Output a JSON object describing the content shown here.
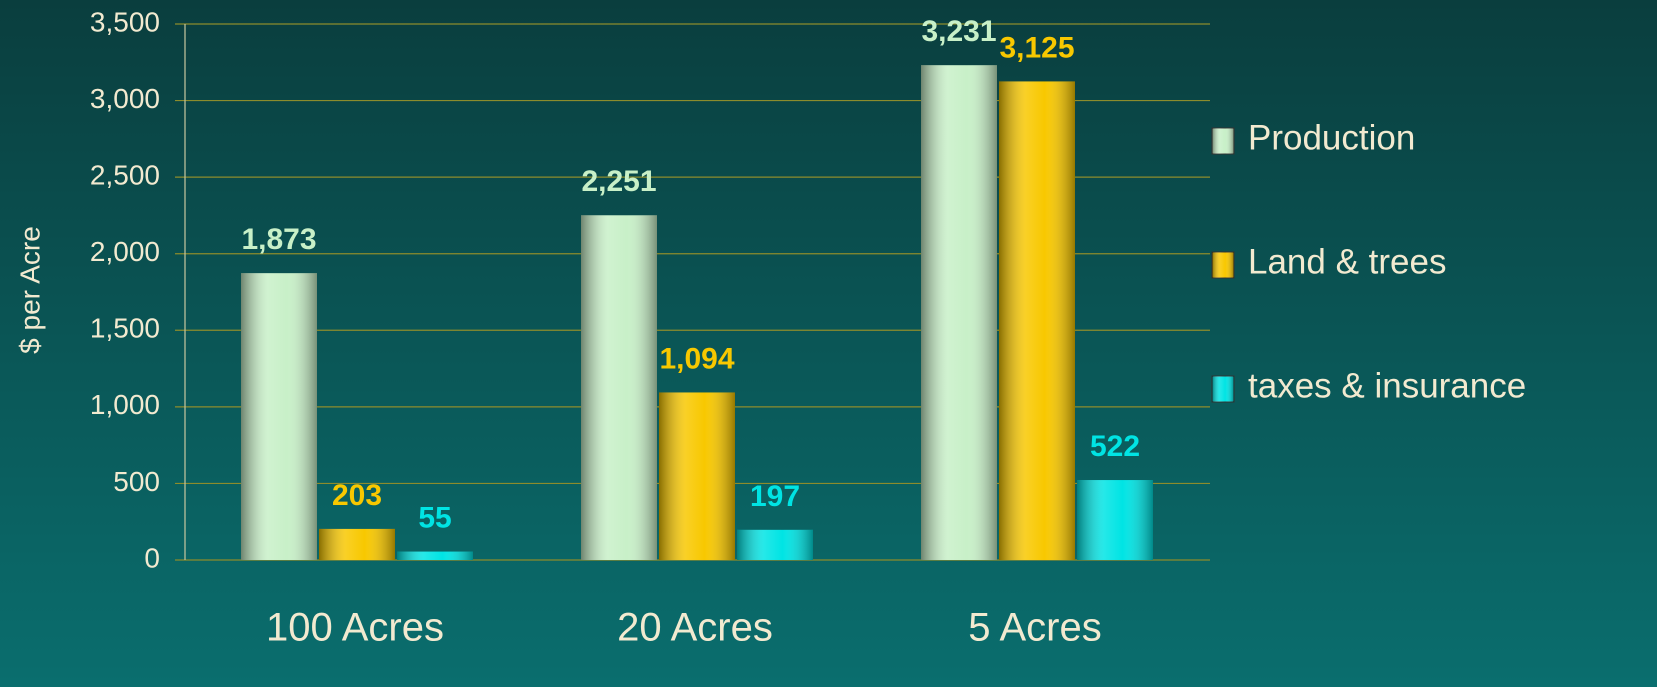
{
  "chart_data": {
    "type": "bar",
    "y_label": "$ per Acre",
    "categories": [
      "100 Acres",
      "20 Acres",
      "5 Acres"
    ],
    "series": [
      {
        "name": "Production",
        "color": "#c8f0c8",
        "values": [
          1873,
          2251,
          3231
        ],
        "value_labels": [
          "1,873",
          "2,251",
          "3,231"
        ]
      },
      {
        "name": "Land & trees",
        "color": "#f8c800",
        "values": [
          203,
          1094,
          3125
        ],
        "value_labels": [
          "203",
          "1,094",
          "3,125"
        ]
      },
      {
        "name": "taxes & insurance",
        "color": "#00e4e4",
        "values": [
          55,
          197,
          522
        ],
        "value_labels": [
          "55",
          "197",
          "522"
        ]
      }
    ],
    "ylim": [
      0,
      3500
    ],
    "yticks": [
      0,
      500,
      {
        "value": 1000,
        "label": "1,000"
      },
      {
        "value": 1500,
        "label": "1,500"
      },
      {
        "value": 2000,
        "label": "2,000"
      },
      {
        "value": 2500,
        "label": "2,500"
      },
      {
        "value": 3000,
        "label": "3,000"
      },
      {
        "value": 3500,
        "label": "3,500"
      }
    ],
    "grid": true,
    "legend": "right"
  }
}
